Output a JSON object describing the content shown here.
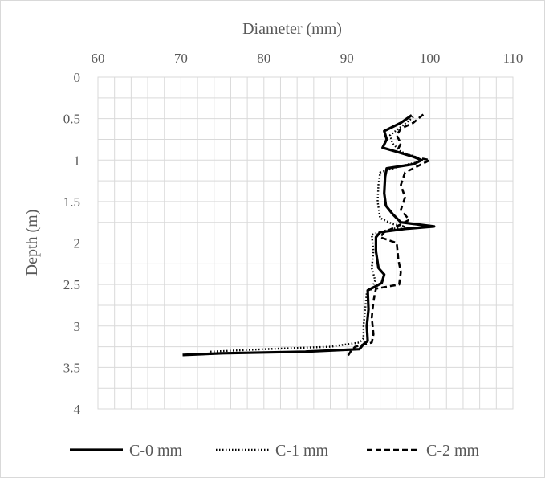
{
  "chart_data": {
    "type": "line",
    "title": "",
    "xlabel": "Diameter (mm)",
    "ylabel": "Depth (m)",
    "xlim": [
      60,
      110
    ],
    "ylim": [
      0,
      4
    ],
    "x_ticks": [
      60,
      70,
      80,
      90,
      100,
      110
    ],
    "y_ticks": [
      0,
      0.5,
      1,
      1.5,
      2,
      2.5,
      3,
      3.5,
      4
    ],
    "x_axis_position": "top",
    "y_axis_reversed": true,
    "grid": "minor gridlines on both axes",
    "legend_position": "bottom",
    "colors": {
      "series": "#000000",
      "grid": "#d9d9d9",
      "text": "#595959"
    },
    "series": [
      {
        "name": "C-0 mm",
        "dash": "solid",
        "points": [
          {
            "x": 97.8,
            "y": 0.46
          },
          {
            "x": 96.5,
            "y": 0.55
          },
          {
            "x": 95.5,
            "y": 0.6
          },
          {
            "x": 94.5,
            "y": 0.65
          },
          {
            "x": 94.8,
            "y": 0.75
          },
          {
            "x": 94.3,
            "y": 0.85
          },
          {
            "x": 96.0,
            "y": 0.9
          },
          {
            "x": 98.0,
            "y": 0.96
          },
          {
            "x": 99.0,
            "y": 1.0
          },
          {
            "x": 98.0,
            "y": 1.05
          },
          {
            "x": 94.8,
            "y": 1.1
          },
          {
            "x": 94.6,
            "y": 1.2
          },
          {
            "x": 94.5,
            "y": 1.4
          },
          {
            "x": 94.7,
            "y": 1.55
          },
          {
            "x": 95.5,
            "y": 1.65
          },
          {
            "x": 96.5,
            "y": 1.75
          },
          {
            "x": 100.5,
            "y": 1.8
          },
          {
            "x": 97.0,
            "y": 1.83
          },
          {
            "x": 94.0,
            "y": 1.87
          },
          {
            "x": 93.5,
            "y": 1.93
          },
          {
            "x": 93.5,
            "y": 2.1
          },
          {
            "x": 93.8,
            "y": 2.3
          },
          {
            "x": 94.5,
            "y": 2.38
          },
          {
            "x": 94.2,
            "y": 2.48
          },
          {
            "x": 93.5,
            "y": 2.52
          },
          {
            "x": 92.5,
            "y": 2.57
          },
          {
            "x": 92.6,
            "y": 2.8
          },
          {
            "x": 92.4,
            "y": 3.0
          },
          {
            "x": 92.5,
            "y": 3.18
          },
          {
            "x": 92.0,
            "y": 3.22
          },
          {
            "x": 91.5,
            "y": 3.28
          },
          {
            "x": 85.0,
            "y": 3.31
          },
          {
            "x": 75.0,
            "y": 3.33
          },
          {
            "x": 70.2,
            "y": 3.35
          }
        ]
      },
      {
        "name": "C-1 mm",
        "dash": "dotted",
        "points": [
          {
            "x": 98.0,
            "y": 0.48
          },
          {
            "x": 96.5,
            "y": 0.6
          },
          {
            "x": 95.2,
            "y": 0.7
          },
          {
            "x": 95.5,
            "y": 0.8
          },
          {
            "x": 96.5,
            "y": 0.9
          },
          {
            "x": 98.5,
            "y": 0.97
          },
          {
            "x": 98.8,
            "y": 1.02
          },
          {
            "x": 96.5,
            "y": 1.07
          },
          {
            "x": 94.0,
            "y": 1.15
          },
          {
            "x": 93.8,
            "y": 1.3
          },
          {
            "x": 93.7,
            "y": 1.5
          },
          {
            "x": 94.0,
            "y": 1.7
          },
          {
            "x": 95.5,
            "y": 1.77
          },
          {
            "x": 97.0,
            "y": 1.8
          },
          {
            "x": 95.0,
            "y": 1.84
          },
          {
            "x": 93.0,
            "y": 1.9
          },
          {
            "x": 93.2,
            "y": 2.1
          },
          {
            "x": 93.0,
            "y": 2.3
          },
          {
            "x": 93.4,
            "y": 2.45
          },
          {
            "x": 93.0,
            "y": 2.55
          },
          {
            "x": 92.4,
            "y": 2.6
          },
          {
            "x": 92.2,
            "y": 2.8
          },
          {
            "x": 92.0,
            "y": 3.0
          },
          {
            "x": 92.0,
            "y": 3.15
          },
          {
            "x": 91.5,
            "y": 3.2
          },
          {
            "x": 88.0,
            "y": 3.25
          },
          {
            "x": 80.0,
            "y": 3.28
          },
          {
            "x": 73.5,
            "y": 3.31
          }
        ]
      },
      {
        "name": "C-2 mm",
        "dash": "dashed",
        "points": [
          {
            "x": 99.2,
            "y": 0.45
          },
          {
            "x": 98.0,
            "y": 0.55
          },
          {
            "x": 96.5,
            "y": 0.62
          },
          {
            "x": 96.0,
            "y": 0.7
          },
          {
            "x": 96.5,
            "y": 0.8
          },
          {
            "x": 96.0,
            "y": 0.9
          },
          {
            "x": 98.5,
            "y": 0.97
          },
          {
            "x": 100.0,
            "y": 1.0
          },
          {
            "x": 99.0,
            "y": 1.05
          },
          {
            "x": 97.0,
            "y": 1.15
          },
          {
            "x": 96.5,
            "y": 1.3
          },
          {
            "x": 97.0,
            "y": 1.45
          },
          {
            "x": 96.5,
            "y": 1.6
          },
          {
            "x": 97.5,
            "y": 1.72
          },
          {
            "x": 96.0,
            "y": 1.8
          },
          {
            "x": 94.5,
            "y": 1.87
          },
          {
            "x": 94.0,
            "y": 1.93
          },
          {
            "x": 96.0,
            "y": 2.0
          },
          {
            "x": 96.2,
            "y": 2.2
          },
          {
            "x": 96.5,
            "y": 2.35
          },
          {
            "x": 96.3,
            "y": 2.5
          },
          {
            "x": 93.5,
            "y": 2.55
          },
          {
            "x": 93.2,
            "y": 2.7
          },
          {
            "x": 93.0,
            "y": 2.9
          },
          {
            "x": 93.2,
            "y": 3.1
          },
          {
            "x": 93.0,
            "y": 3.2
          },
          {
            "x": 91.0,
            "y": 3.25
          },
          {
            "x": 90.5,
            "y": 3.3
          },
          {
            "x": 90.0,
            "y": 3.38
          }
        ]
      }
    ]
  }
}
